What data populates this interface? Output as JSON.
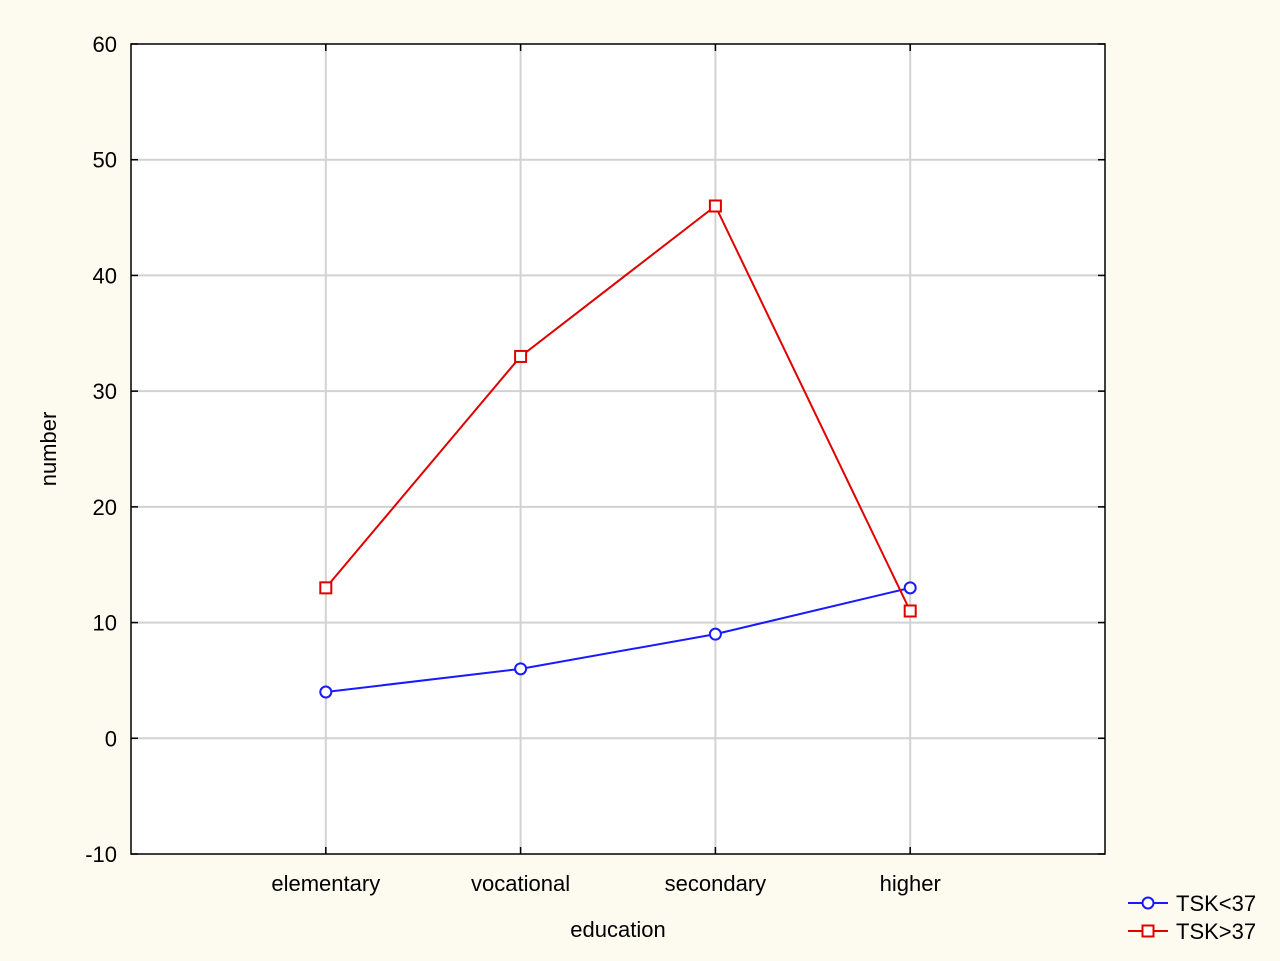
{
  "chart_data": {
    "type": "line",
    "categories": [
      "elementary",
      "vocational",
      "secondary",
      "higher"
    ],
    "series": [
      {
        "name": "TSK<37",
        "values": [
          4,
          6,
          9,
          13
        ],
        "color": "#1a1aff",
        "marker": "circle"
      },
      {
        "name": "TSK>37",
        "values": [
          13,
          33,
          46,
          11
        ],
        "color": "#e00000",
        "marker": "square"
      }
    ],
    "xlabel": "education",
    "ylabel": "number",
    "ylim": [
      -10,
      60
    ],
    "yticks": [
      -10,
      0,
      10,
      20,
      30,
      40,
      50,
      60
    ],
    "grid": true,
    "legend": "bottom-right"
  }
}
